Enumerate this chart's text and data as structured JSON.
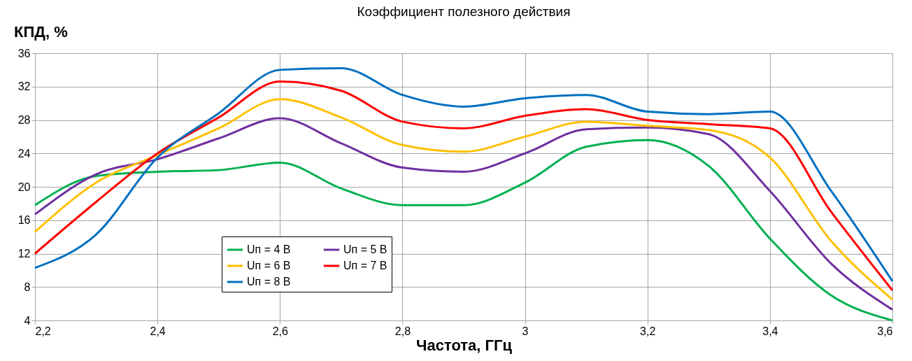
{
  "chart_data": {
    "type": "line",
    "title": "Коэффициент полезного действия",
    "xlabel": "Частота, ГГц",
    "ylabel": "КПД, %",
    "x": [
      2.2,
      2.3,
      2.4,
      2.5,
      2.6,
      2.7,
      2.8,
      2.9,
      3.0,
      3.1,
      3.2,
      3.3,
      3.4,
      3.5,
      3.6
    ],
    "series": [
      {
        "name": "Uп = 4 В",
        "color": "#00b050",
        "values": [
          17.8,
          21.3,
          21.8,
          22.0,
          22.9,
          19.8,
          17.8,
          17.8,
          20.5,
          24.8,
          25.6,
          22.5,
          13.8,
          7.0,
          4.0
        ]
      },
      {
        "name": "Uп = 5 В",
        "color": "#7030a0",
        "values": [
          16.7,
          21.5,
          23.3,
          25.8,
          28.2,
          25.2,
          22.3,
          21.8,
          24.0,
          26.9,
          27.1,
          26.3,
          19.5,
          10.8,
          5.3
        ]
      },
      {
        "name": "Uп = 6 В",
        "color": "#ffc000",
        "values": [
          14.6,
          20.5,
          23.8,
          27.0,
          30.5,
          28.3,
          25.0,
          24.2,
          26.0,
          27.8,
          27.3,
          26.8,
          23.5,
          13.5,
          6.5
        ]
      },
      {
        "name": "Uп = 7 В",
        "color": "#ff0000",
        "values": [
          12.0,
          18.2,
          24.0,
          28.3,
          32.6,
          31.5,
          27.8,
          27.0,
          28.5,
          29.3,
          28.0,
          27.5,
          27.0,
          17.0,
          7.6
        ]
      },
      {
        "name": "Uп = 8 В",
        "color": "#0070c0",
        "values": [
          10.3,
          14.3,
          23.5,
          28.8,
          34.0,
          34.2,
          31.0,
          29.6,
          30.6,
          31.0,
          29.0,
          28.7,
          29.0,
          19.5,
          8.7
        ]
      }
    ],
    "xlim": [
      2.2,
      3.6
    ],
    "xticks": [
      {
        "value": 2.2,
        "label": "2,2"
      },
      {
        "value": 2.4,
        "label": "2,4"
      },
      {
        "value": 2.6,
        "label": "2,6"
      },
      {
        "value": 2.8,
        "label": "2,8"
      },
      3,
      {
        "value": 3.2,
        "label": "3,2"
      },
      {
        "value": 3.4,
        "label": "3,4"
      },
      {
        "value": 3.6,
        "label": "3,6"
      }
    ],
    "ylim": [
      4,
      36
    ],
    "yticks": [
      4,
      8,
      12,
      16,
      20,
      24,
      28,
      32,
      36
    ],
    "grid": true,
    "legend": "bottom left",
    "marker": "none",
    "line_style": "solid"
  }
}
